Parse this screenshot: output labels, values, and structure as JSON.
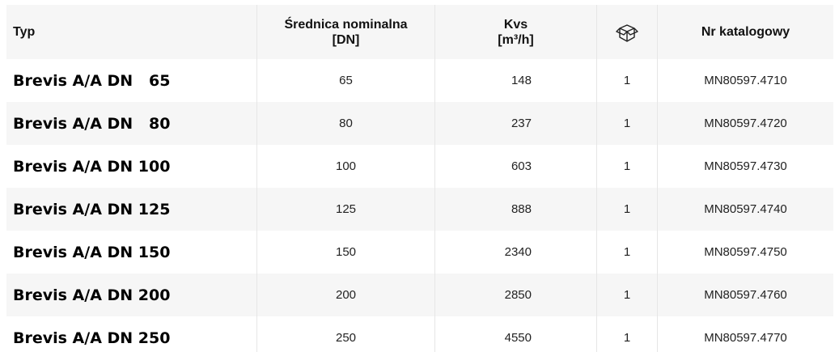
{
  "table": {
    "header": {
      "type": "Typ",
      "dn": [
        "Średnica nominalna",
        "[DN]"
      ],
      "kvs": [
        "Kvs",
        "[m³/h]"
      ],
      "catalog": "Nr katalogowy"
    },
    "rows": [
      [
        "Brevis A/A DN   65",
        65,
        148,
        1,
        "MN80597.4710"
      ],
      [
        "Brevis A/A DN   80",
        80,
        237,
        1,
        "MN80597.4720"
      ],
      [
        "Brevis A/A DN 100",
        100,
        603,
        1,
        "MN80597.4730"
      ],
      [
        "Brevis A/A DN 125",
        125,
        888,
        1,
        "MN80597.4740"
      ],
      [
        "Brevis A/A DN 150",
        150,
        2340,
        1,
        "MN80597.4750"
      ],
      [
        "Brevis A/A DN 200",
        200,
        2850,
        1,
        "MN80597.4760"
      ],
      [
        "Brevis A/A DN 250",
        250,
        4550,
        1,
        "MN80597.4770"
      ]
    ]
  }
}
